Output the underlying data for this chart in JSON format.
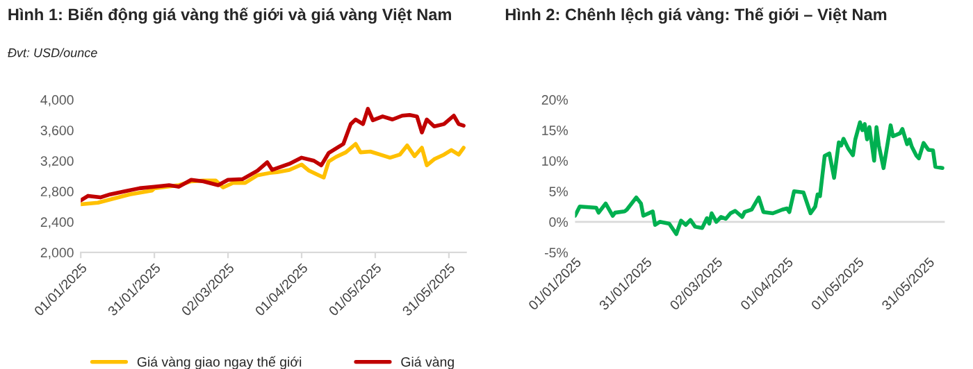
{
  "chart_data": [
    {
      "type": "line",
      "title": "Hình 1: Biến động giá vàng thế giới và giá vàng Việt Nam",
      "subtitle": "Đvt: USD/ounce",
      "series": [
        {
          "name": "Giá vàng giao ngay thế giới",
          "color": "#ffc000",
          "x": [
            "2025-01-01",
            "2025-01-08",
            "2025-01-15",
            "2025-01-21",
            "2025-01-30",
            "2025-01-31",
            "2025-02-05",
            "2025-02-10",
            "2025-02-15",
            "2025-02-20",
            "2025-02-25",
            "2025-02-28",
            "2025-03-04",
            "2025-03-09",
            "2025-03-14",
            "2025-03-19",
            "2025-03-22",
            "2025-03-27",
            "2025-04-01",
            "2025-04-04",
            "2025-04-08",
            "2025-04-10",
            "2025-04-12",
            "2025-04-15",
            "2025-04-19",
            "2025-04-23",
            "2025-04-25",
            "2025-04-29",
            "2025-05-03",
            "2025-05-07",
            "2025-05-11",
            "2025-05-14",
            "2025-05-17",
            "2025-05-20",
            "2025-05-22",
            "2025-05-25",
            "2025-05-29",
            "2025-06-01",
            "2025-06-04",
            "2025-06-06"
          ],
          "values": [
            2630,
            2650,
            2710,
            2760,
            2810,
            2840,
            2860,
            2880,
            2930,
            2940,
            2940,
            2850,
            2910,
            2910,
            3010,
            3040,
            3050,
            3080,
            3150,
            3070,
            3010,
            2980,
            3190,
            3250,
            3310,
            3420,
            3310,
            3320,
            3280,
            3240,
            3280,
            3400,
            3260,
            3370,
            3140,
            3220,
            3280,
            3340,
            3280,
            3370
          ]
        },
        {
          "name": "Giá vàng",
          "color": "#c00000",
          "x": [
            "2025-01-01",
            "2025-01-04",
            "2025-01-09",
            "2025-01-13",
            "2025-01-19",
            "2025-01-25",
            "2025-01-31",
            "2025-02-06",
            "2025-02-10",
            "2025-02-15",
            "2025-02-20",
            "2025-02-26",
            "2025-03-02",
            "2025-03-08",
            "2025-03-14",
            "2025-03-18",
            "2025-03-20",
            "2025-03-27",
            "2025-04-01",
            "2025-04-06",
            "2025-04-09",
            "2025-04-12",
            "2025-04-16",
            "2025-04-18",
            "2025-04-21",
            "2025-04-23",
            "2025-04-26",
            "2025-04-28",
            "2025-04-30",
            "2025-05-04",
            "2025-05-08",
            "2025-05-12",
            "2025-05-15",
            "2025-05-18",
            "2025-05-20",
            "2025-05-22",
            "2025-05-25",
            "2025-05-29",
            "2025-06-02",
            "2025-06-04",
            "2025-06-06"
          ],
          "values": [
            2680,
            2740,
            2720,
            2760,
            2800,
            2840,
            2860,
            2880,
            2860,
            2950,
            2930,
            2880,
            2950,
            2960,
            3070,
            3180,
            3080,
            3160,
            3240,
            3200,
            3140,
            3300,
            3380,
            3420,
            3680,
            3740,
            3680,
            3880,
            3730,
            3780,
            3740,
            3790,
            3800,
            3780,
            3570,
            3740,
            3650,
            3680,
            3790,
            3680,
            3660
          ]
        }
      ],
      "xlim": [
        "2025-01-01",
        "2025-06-07"
      ],
      "xticks": [
        {
          "value": "2025-01-01",
          "label": "01/01/2025"
        },
        {
          "value": "2025-01-31",
          "label": "31/01/2025"
        },
        {
          "value": "2025-03-02",
          "label": "02/03/2025"
        },
        {
          "value": "2025-04-01",
          "label": "01/04/2025"
        },
        {
          "value": "2025-05-01",
          "label": "01/05/2025"
        },
        {
          "value": "2025-05-31",
          "label": "31/05/2025"
        }
      ],
      "ylim": [
        2000,
        4000
      ],
      "yticks": [
        {
          "value": 2000,
          "label": "2,000"
        },
        {
          "value": 2400,
          "label": "2,400"
        },
        {
          "value": 2800,
          "label": "2,800"
        },
        {
          "value": 3200,
          "label": "3,200"
        },
        {
          "value": 3600,
          "label": "3,600"
        },
        {
          "value": 4000,
          "label": "4,000"
        }
      ],
      "grid": false,
      "legend": "bottom"
    },
    {
      "type": "line",
      "title": "Hình 2: Chênh lệch giá vàng: Thế giới – Việt Nam",
      "color": "#00b050",
      "x": [
        "2025-01-01",
        "2025-01-03",
        "2025-01-10",
        "2025-01-11",
        "2025-01-14",
        "2025-01-17",
        "2025-01-18",
        "2025-01-22",
        "2025-01-23",
        "2025-01-27",
        "2025-01-29",
        "2025-01-30",
        "2025-02-03",
        "2025-02-04",
        "2025-02-06",
        "2025-02-10",
        "2025-02-13",
        "2025-02-15",
        "2025-02-17",
        "2025-02-19",
        "2025-02-21",
        "2025-02-24",
        "2025-02-26",
        "2025-02-27",
        "2025-02-28",
        "2025-03-02",
        "2025-03-04",
        "2025-03-06",
        "2025-03-08",
        "2025-03-10",
        "2025-03-13",
        "2025-03-14",
        "2025-03-17",
        "2025-03-20",
        "2025-03-22",
        "2025-03-26",
        "2025-03-30",
        "2025-04-01",
        "2025-04-02",
        "2025-04-04",
        "2025-04-08",
        "2025-04-11",
        "2025-04-13",
        "2025-04-14",
        "2025-04-15",
        "2025-04-17",
        "2025-04-19",
        "2025-04-21",
        "2025-04-23",
        "2025-04-24",
        "2025-04-25",
        "2025-04-27",
        "2025-04-29",
        "2025-04-30",
        "2025-05-02",
        "2025-05-03",
        "2025-05-04",
        "2025-05-05",
        "2025-05-06",
        "2025-05-08",
        "2025-05-09",
        "2025-05-10",
        "2025-05-12",
        "2025-05-15",
        "2025-05-16",
        "2025-05-19",
        "2025-05-20",
        "2025-05-22",
        "2025-05-23",
        "2025-05-24",
        "2025-05-26",
        "2025-05-27",
        "2025-05-29",
        "2025-05-31",
        "2025-06-02",
        "2025-06-03",
        "2025-06-06"
      ],
      "values": [
        1.0,
        2.5,
        2.3,
        1.5,
        3.0,
        1.0,
        1.5,
        1.7,
        2.0,
        4.0,
        3.0,
        1.0,
        1.7,
        -0.5,
        0.0,
        -0.3,
        -2.0,
        0.2,
        -0.5,
        0.3,
        -0.8,
        -1.0,
        0.6,
        -0.3,
        1.4,
        0.0,
        0.8,
        0.5,
        1.4,
        1.8,
        0.8,
        1.6,
        2.0,
        4.0,
        1.6,
        1.4,
        2.0,
        2.2,
        1.6,
        5.0,
        4.8,
        1.4,
        2.5,
        4.5,
        4.2,
        10.8,
        11.2,
        7.2,
        13.0,
        12.5,
        13.6,
        12.0,
        10.9,
        13.5,
        16.3,
        15.0,
        16.0,
        13.5,
        15.5,
        10.0,
        15.5,
        12.5,
        8.8,
        15.8,
        14.0,
        14.5,
        15.2,
        12.7,
        13.5,
        12.3,
        10.8,
        10.4,
        12.9,
        11.8,
        11.7,
        9.0,
        8.8
      ],
      "xlim": [
        "2025-01-01",
        "2025-06-07"
      ],
      "xticks": [
        {
          "value": "2025-01-01",
          "label": "01/01/2025"
        },
        {
          "value": "2025-01-31",
          "label": "31/01/2025"
        },
        {
          "value": "2025-03-02",
          "label": "02/03/2025"
        },
        {
          "value": "2025-04-01",
          "label": "01/04/2025"
        },
        {
          "value": "2025-05-01",
          "label": "01/05/2025"
        },
        {
          "value": "2025-05-31",
          "label": "31/05/2025"
        }
      ],
      "ylim": [
        -5,
        20
      ],
      "yticks": [
        {
          "value": -5,
          "label": "-5%"
        },
        {
          "value": 0,
          "label": "0%"
        },
        {
          "value": 5,
          "label": "5%"
        },
        {
          "value": 10,
          "label": "10%"
        },
        {
          "value": 15,
          "label": "15%"
        },
        {
          "value": 20,
          "label": "20%"
        }
      ],
      "ref_lines": [
        {
          "axis": "y",
          "value": 0,
          "color": "#d9d9d9"
        }
      ],
      "grid": false
    }
  ]
}
